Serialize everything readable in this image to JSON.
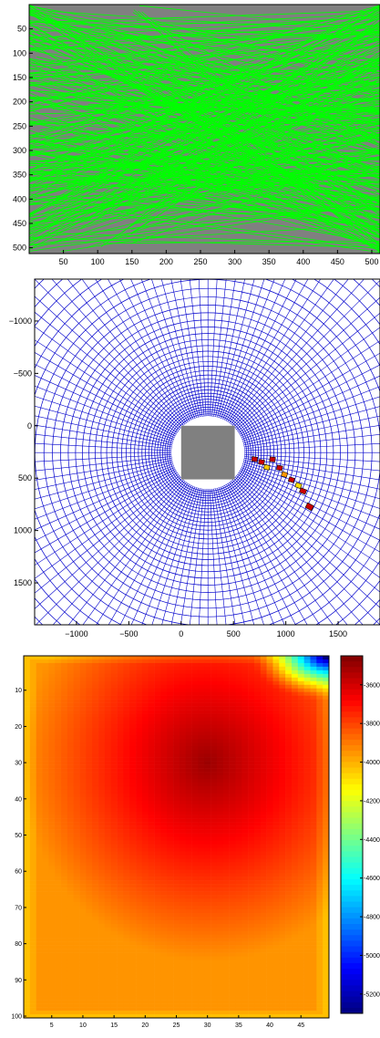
{
  "chart_data": [
    {
      "type": "line",
      "title": "",
      "background": "#808080",
      "line_color": "#00ff00",
      "xlim": [
        0,
        512
      ],
      "ylim": [
        0,
        512
      ],
      "y_reversed": true,
      "grid": false,
      "x_ticks": [
        50,
        100,
        150,
        200,
        250,
        300,
        350,
        400,
        450,
        500
      ],
      "y_ticks": [
        50,
        100,
        150,
        200,
        250,
        300,
        350,
        400,
        450,
        500
      ],
      "x_tick_labels": [
        "50",
        "100",
        "150",
        "200",
        "250",
        "300",
        "350",
        "400",
        "450",
        "500"
      ],
      "y_tick_labels": [
        "50",
        "100",
        "150",
        "200",
        "250",
        "300",
        "350",
        "400",
        "450",
        "500"
      ]
    },
    {
      "type": "scatter",
      "title": "",
      "mesh_color": "#0000cc",
      "xlim": [
        -1400,
        1900
      ],
      "ylim": [
        -1400,
        1900
      ],
      "y_reversed": true,
      "grid": false,
      "x_ticks": [
        -1000,
        -500,
        0,
        500,
        1000,
        1500
      ],
      "y_ticks": [
        -1000,
        -500,
        0,
        500,
        1000,
        1500
      ],
      "x_tick_labels": [
        "−1000",
        "−500",
        "0",
        "500",
        "1000",
        "1500"
      ],
      "y_tick_labels": [
        "−1000",
        "−500",
        "0",
        "500",
        "1000",
        "1500"
      ],
      "center": [
        256,
        256
      ],
      "inner_radius": 350,
      "square": {
        "x": [
          0,
          512
        ],
        "y": [
          0,
          512
        ],
        "color": "#808080"
      },
      "highlight_cells": [
        {
          "r": 450,
          "a": 8,
          "color": "#cc0000"
        },
        {
          "r": 520,
          "a": 10,
          "color": "#cc0000"
        },
        {
          "r": 580,
          "a": 14,
          "color": "#ffcc00"
        },
        {
          "r": 620,
          "a": 6,
          "color": "#cc0000"
        },
        {
          "r": 700,
          "a": 12,
          "color": "#cc0000"
        },
        {
          "r": 760,
          "a": 16,
          "color": "#ff9900"
        },
        {
          "r": 840,
          "a": 18,
          "color": "#cc0000"
        },
        {
          "r": 920,
          "a": 20,
          "color": "#ffdd00"
        },
        {
          "r": 980,
          "a": 22,
          "color": "#cc0000"
        },
        {
          "r": 1100,
          "a": 28,
          "color": "#cc0000"
        }
      ]
    },
    {
      "type": "heatmap",
      "title": "",
      "colormap": "jet",
      "xlim": [
        0.5,
        49.5
      ],
      "ylim": [
        0.5,
        100.5
      ],
      "y_reversed": true,
      "x_ticks": [
        5,
        10,
        15,
        20,
        25,
        30,
        35,
        40,
        45
      ],
      "y_ticks": [
        10,
        20,
        30,
        40,
        50,
        60,
        70,
        80,
        90,
        100
      ],
      "x_tick_labels": [
        "5",
        "10",
        "15",
        "20",
        "25",
        "30",
        "35",
        "40",
        "45"
      ],
      "y_tick_labels": [
        "10",
        "20",
        "30",
        "40",
        "50",
        "60",
        "70",
        "80",
        "90",
        "100"
      ],
      "clim": [
        -5300,
        -3450
      ],
      "colorbar_ticks": [
        -3600,
        -3800,
        -4000,
        -4200,
        -4400,
        -4600,
        -4800,
        -5000,
        -5200
      ],
      "colorbar_tick_labels": [
        "-3600",
        "-3800",
        "-4000",
        "-4200",
        "-4400",
        "-4600",
        "-4800",
        "-5000",
        "-5200"
      ],
      "peak": {
        "x": 30,
        "y": 30,
        "value": -3500
      },
      "edge_value": -3950,
      "corner_min": {
        "x": 49,
        "y": 1,
        "value": -5300
      }
    }
  ]
}
